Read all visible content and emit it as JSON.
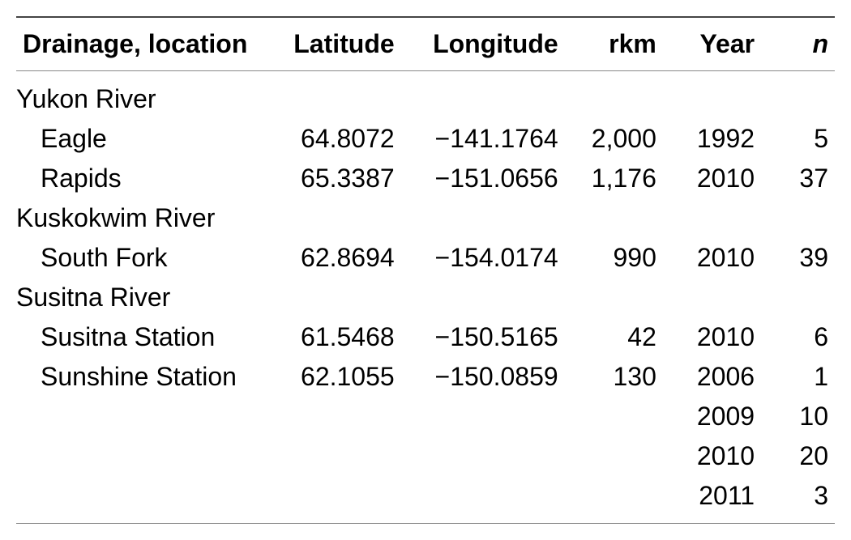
{
  "table": {
    "type": "table",
    "background_color": "#ffffff",
    "text_color": "#000000",
    "border_color_top": "#444444",
    "border_color_rules": "#888888",
    "font_size_pt": 24,
    "header_font_weight": 600,
    "body_font_weight": 400,
    "columns": [
      {
        "key": "location",
        "label": "Drainage, location",
        "align": "left",
        "width_pct": 31,
        "italic": false
      },
      {
        "key": "latitude",
        "label": "Latitude",
        "align": "right",
        "width_pct": 16,
        "italic": false
      },
      {
        "key": "longitude",
        "label": "Longitude",
        "align": "right",
        "width_pct": 20,
        "italic": false
      },
      {
        "key": "rkm",
        "label": "rkm",
        "align": "right",
        "width_pct": 12,
        "italic": false
      },
      {
        "key": "year",
        "label": "Year",
        "align": "right",
        "width_pct": 12,
        "italic": false
      },
      {
        "key": "n",
        "label": "n",
        "align": "right",
        "width_pct": 9,
        "italic": true
      }
    ],
    "groups": [
      {
        "name": "Yukon River",
        "rows": [
          {
            "location": "Eagle",
            "latitude": "64.8072",
            "longitude": "−141.1764",
            "rkm": "2,000",
            "year": "1992",
            "n": "5"
          },
          {
            "location": "Rapids",
            "latitude": "65.3387",
            "longitude": "−151.0656",
            "rkm": "1,176",
            "year": "2010",
            "n": "37"
          }
        ]
      },
      {
        "name": "Kuskokwim River",
        "rows": [
          {
            "location": "South Fork",
            "latitude": "62.8694",
            "longitude": "−154.0174",
            "rkm": "990",
            "year": "2010",
            "n": "39"
          }
        ]
      },
      {
        "name": "Susitna River",
        "rows": [
          {
            "location": "Susitna Station",
            "latitude": "61.5468",
            "longitude": "−150.5165",
            "rkm": "42",
            "year": "2010",
            "n": "6"
          },
          {
            "location": "Sunshine Station",
            "latitude": "62.1055",
            "longitude": "−150.0859",
            "rkm": "130",
            "year": "2006",
            "n": "1"
          },
          {
            "location": "",
            "latitude": "",
            "longitude": "",
            "rkm": "",
            "year": "2009",
            "n": "10"
          },
          {
            "location": "",
            "latitude": "",
            "longitude": "",
            "rkm": "",
            "year": "2010",
            "n": "20"
          },
          {
            "location": "",
            "latitude": "",
            "longitude": "",
            "rkm": "",
            "year": "2011",
            "n": "3"
          }
        ]
      }
    ]
  }
}
